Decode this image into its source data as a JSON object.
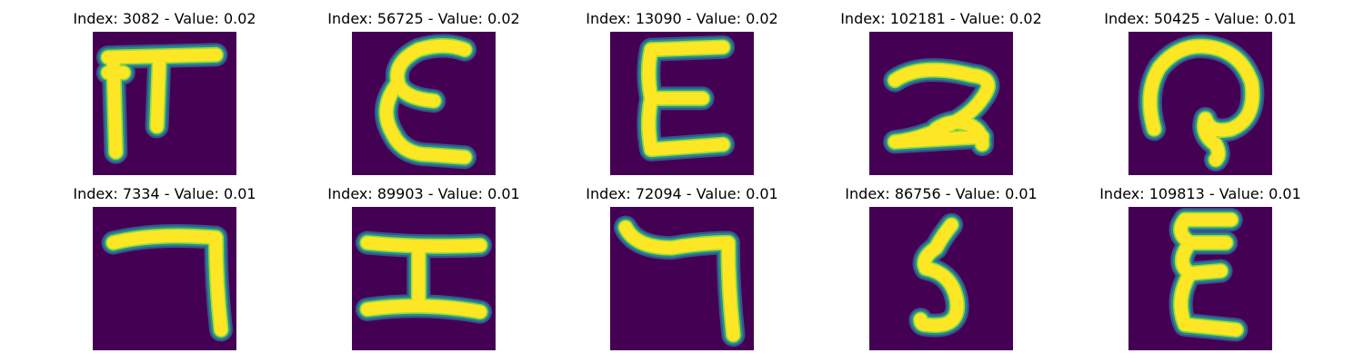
{
  "colors": {
    "background": "#440154",
    "stroke_core": "#fde725",
    "stroke_mid": "#a0da39",
    "stroke_edge": "#21918c",
    "stroke_outer": "#3b528b"
  },
  "panels": [
    {
      "title": "Index: 3082 - Value: 0.02",
      "glyph": "pi"
    },
    {
      "title": "Index: 56725 - Value: 0.02",
      "glyph": "epsilon-wavy"
    },
    {
      "title": "Index: 13090 - Value: 0.02",
      "glyph": "epsilon-straight"
    },
    {
      "title": "Index: 102181 - Value: 0.02",
      "glyph": "two-loop"
    },
    {
      "title": "Index: 50425 - Value: 0.01",
      "glyph": "swirl"
    },
    {
      "title": "Index: 7334 - Value: 0.01",
      "glyph": "seven-hook"
    },
    {
      "title": "Index: 89903 - Value: 0.01",
      "glyph": "h-beam"
    },
    {
      "title": "Index: 72094 - Value: 0.01",
      "glyph": "seven-thick"
    },
    {
      "title": "Index: 86756 - Value: 0.01",
      "glyph": "five-curl"
    },
    {
      "title": "Index: 109813 - Value: 0.01",
      "glyph": "epsilon-small"
    }
  ]
}
